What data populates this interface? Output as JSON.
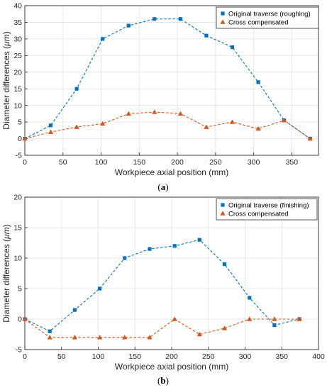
{
  "chart_data": [
    {
      "type": "line",
      "caption_open": "(",
      "caption_letter": "a",
      "caption_close": ")",
      "xlabel": "Workpiece axial position (mm)",
      "ylabel_prefix": "Diameter differences (",
      "ylabel_unit": "μm",
      "ylabel_suffix": ")",
      "xlim": [
        0,
        385
      ],
      "ylim": [
        -5,
        40
      ],
      "xticks": [
        0,
        50,
        100,
        150,
        200,
        250,
        300,
        350
      ],
      "yticks": [
        -5,
        0,
        5,
        10,
        15,
        20,
        25,
        30,
        35,
        40
      ],
      "grid": true,
      "legend_position": "top-right",
      "series": [
        {
          "name": "Original traverse (roughing)",
          "marker": "square",
          "color": "#0072BD",
          "x": [
            0,
            34,
            68,
            102,
            136,
            170,
            204,
            238,
            272,
            306,
            340,
            374
          ],
          "y": [
            0,
            4,
            15,
            30,
            34,
            36,
            36,
            31,
            27.5,
            17,
            5.5,
            0
          ]
        },
        {
          "name": "Cross compensated",
          "marker": "triangle",
          "color": "#D95319",
          "x": [
            0,
            34,
            68,
            102,
            136,
            170,
            204,
            238,
            272,
            306,
            340,
            374
          ],
          "y": [
            0,
            2,
            3.5,
            4.5,
            7.5,
            8,
            7.5,
            3.5,
            5,
            3,
            5.5,
            0
          ]
        }
      ]
    },
    {
      "type": "line",
      "caption_open": "(",
      "caption_letter": "b",
      "caption_close": ")",
      "xlabel": "Workpiece axial position (mm)",
      "ylabel_prefix": "Diameter differences (",
      "ylabel_unit": "μm",
      "ylabel_suffix": ")",
      "xlim": [
        0,
        400
      ],
      "ylim": [
        -5,
        20
      ],
      "xticks": [
        0,
        50,
        100,
        150,
        200,
        250,
        300,
        350,
        400
      ],
      "yticks": [
        -5,
        0,
        5,
        10,
        15,
        20
      ],
      "grid": true,
      "legend_position": "top-right",
      "series": [
        {
          "name": "Original traverse (finishing)",
          "marker": "square",
          "color": "#0072BD",
          "x": [
            0,
            34,
            68,
            102,
            136,
            170,
            204,
            238,
            272,
            306,
            340,
            374
          ],
          "y": [
            0,
            -2,
            1.5,
            5,
            10,
            11.5,
            12,
            13,
            9,
            3.5,
            -1,
            0
          ]
        },
        {
          "name": "Cross compensated",
          "marker": "triangle",
          "color": "#D95319",
          "x": [
            0,
            34,
            68,
            102,
            136,
            170,
            204,
            238,
            272,
            306,
            340,
            374
          ],
          "y": [
            0,
            -3,
            -3,
            -3,
            -3,
            -3,
            0,
            -2.5,
            -1.5,
            0,
            0,
            0
          ]
        }
      ]
    }
  ]
}
